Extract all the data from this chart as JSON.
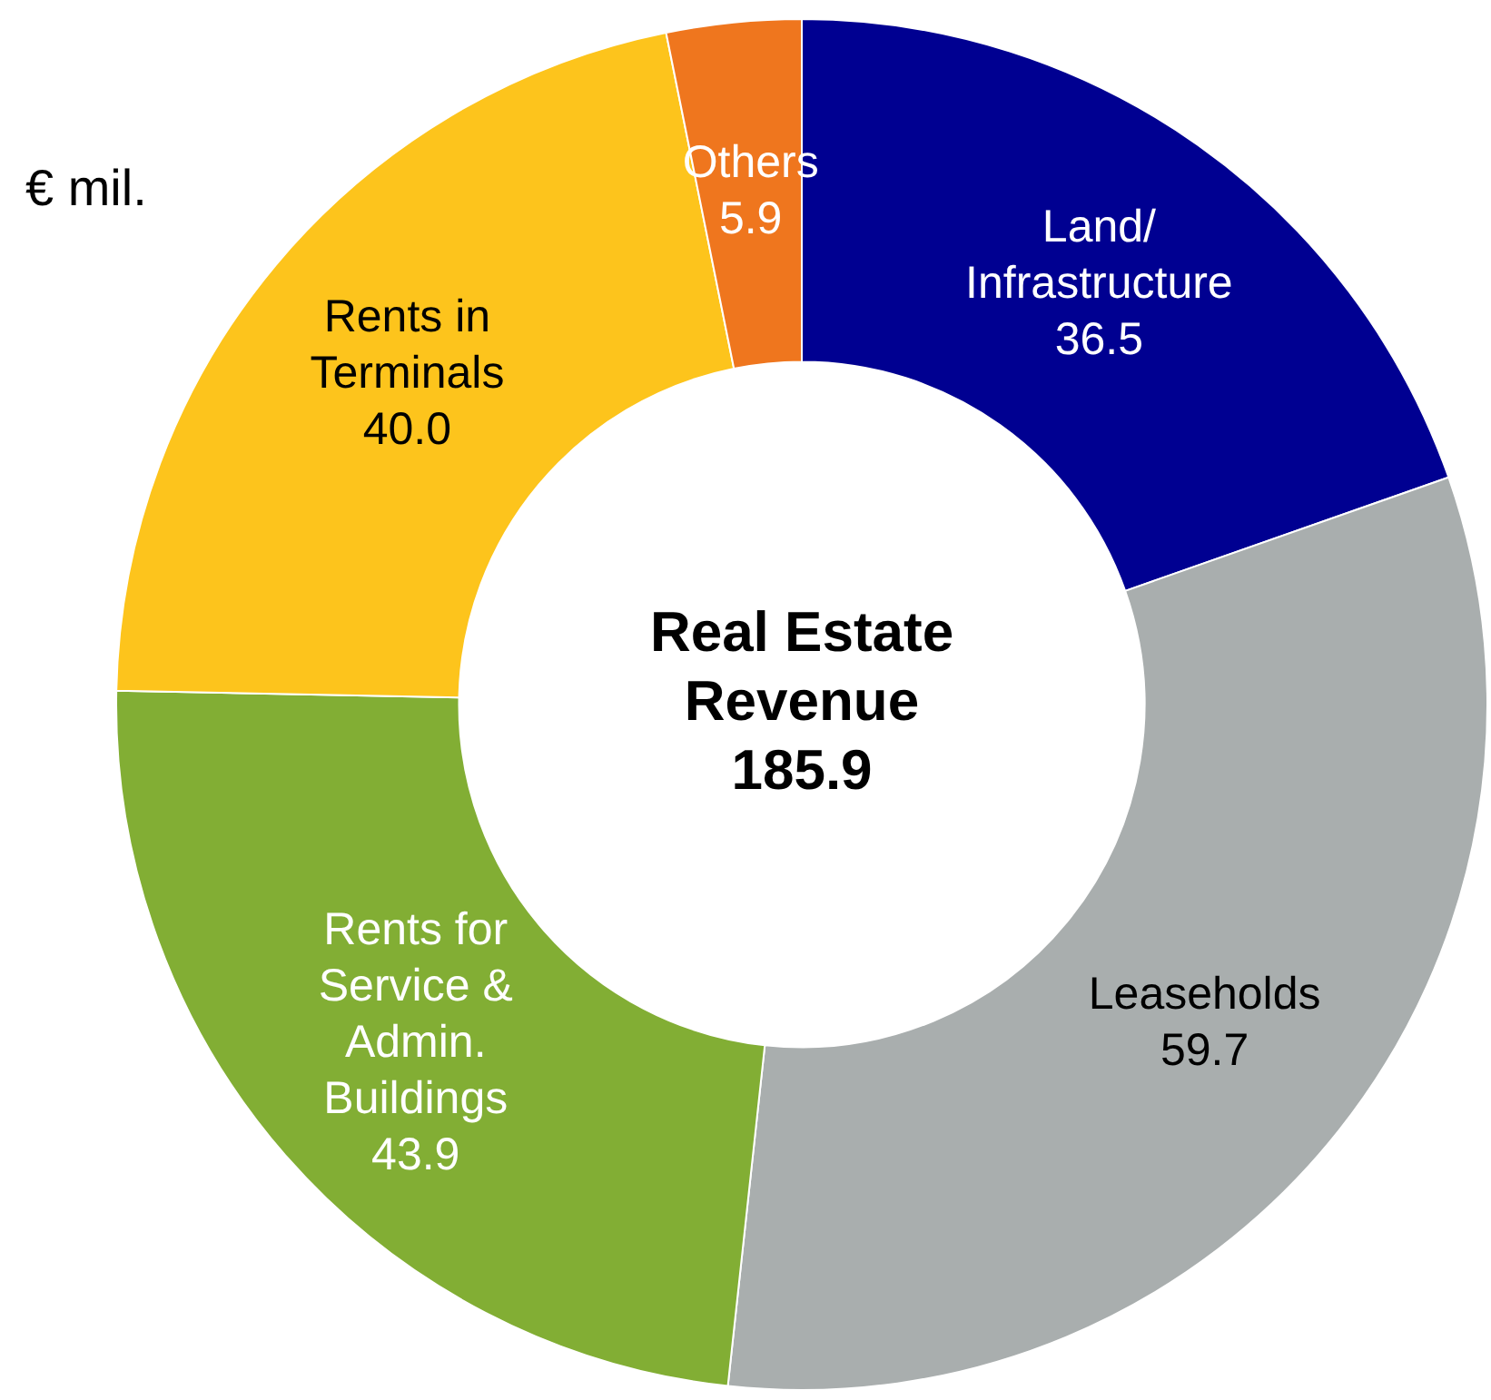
{
  "chart_data": {
    "type": "donut",
    "title": "Real Estate Revenue 185.9",
    "annotations": [
      "€ mil."
    ],
    "categories": [
      "Land/ Infrastructure",
      "Leaseholds",
      "Rents for Service & Admin. Buildings",
      "Rents in Terminals",
      "Others"
    ],
    "values": [
      36.5,
      59.7,
      43.9,
      40.0,
      5.9
    ],
    "value_labels": [
      "36.5",
      "59.7",
      "43.9",
      "40.0",
      "5.9"
    ],
    "colors": [
      "#000091",
      "#a9aeae",
      "#82ae34",
      "#fdc41c",
      "#ef761e"
    ],
    "legend": false
  }
}
